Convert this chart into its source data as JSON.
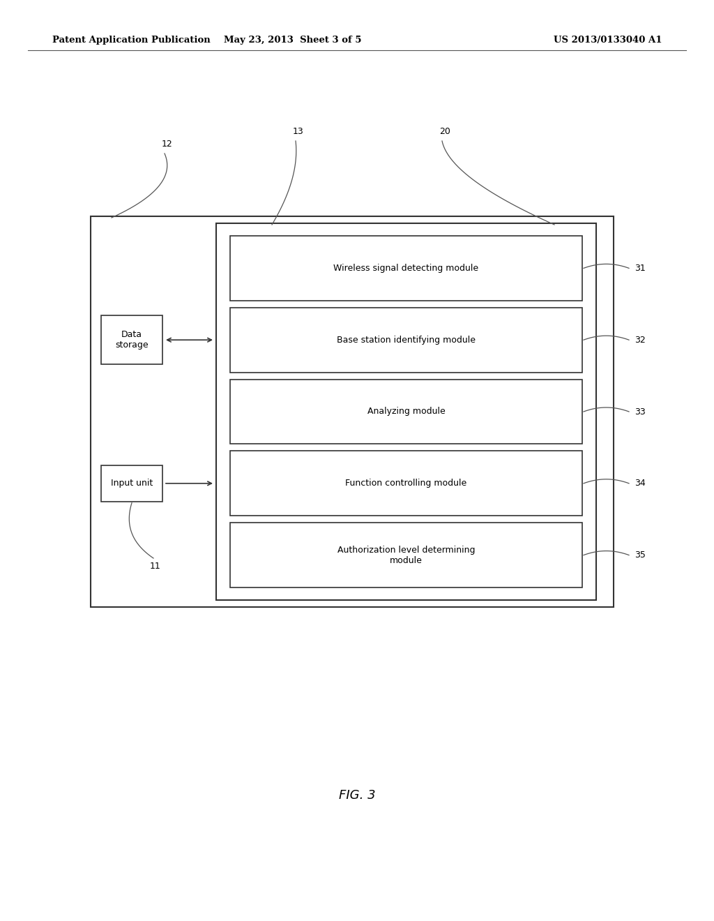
{
  "background_color": "#ffffff",
  "header_left": "Patent Application Publication",
  "header_mid": "May 23, 2013  Sheet 3 of 5",
  "header_right": "US 2013/0133040 A1",
  "fig_label": "FIG. 3",
  "modules": [
    {
      "label": "Wireless signal detecting module",
      "id": "31",
      "row": 0
    },
    {
      "label": "Base station identifying module",
      "id": "32",
      "row": 1
    },
    {
      "label": "Analyzing module",
      "id": "33",
      "row": 2
    },
    {
      "label": "Function controlling module",
      "id": "34",
      "row": 3
    },
    {
      "label": "Authorization level determining\nmodule",
      "id": "35",
      "row": 4
    }
  ],
  "data_storage_label": "Data\nstorage",
  "input_unit_label": "Input unit",
  "text_color": "#000000",
  "font_size_header": 9.5,
  "font_size_body": 9,
  "font_size_label": 9
}
